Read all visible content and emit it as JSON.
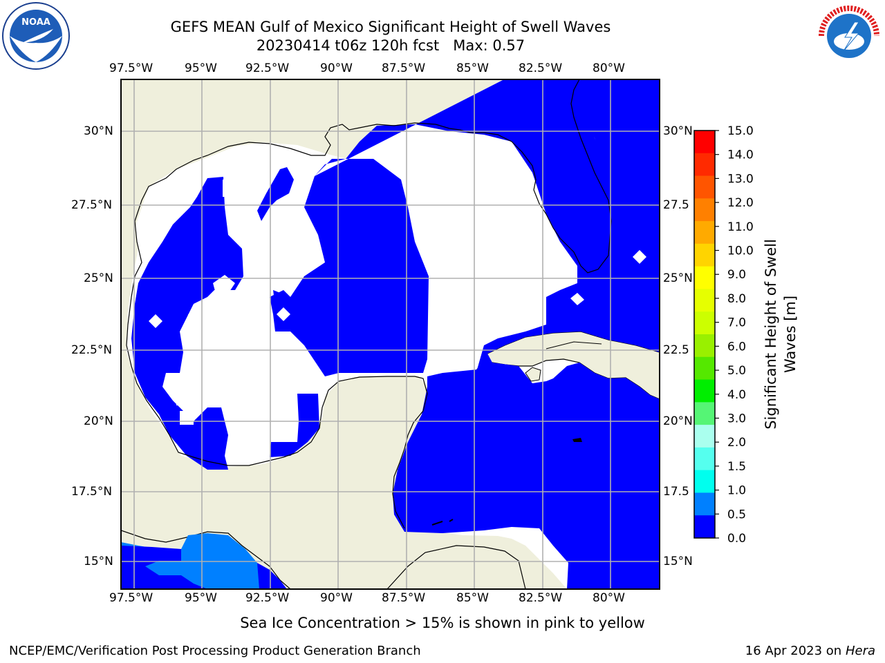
{
  "title_line1": "GEFS MEAN Gulf of Mexico Significant Height of Swell Waves",
  "title_line2": "20230414 t06z 120h fcst   Max: 0.57",
  "lon_ticks": [
    "97.5°W",
    "95°W",
    "92.5°W",
    "90°W",
    "87.5°W",
    "85°W",
    "82.5°W",
    "80°W"
  ],
  "lat_ticks": [
    "30°N",
    "27.5°N",
    "25°N",
    "22.5°N",
    "20°N",
    "17.5°N",
    "15°N"
  ],
  "lat_ticks_right": [
    "30°N",
    "27.5",
    "25°N",
    "22.5",
    "20°N",
    "17.5",
    "15°N"
  ],
  "colorbar": {
    "label_line1": "Significant Height of Swell",
    "label_line2": "Waves [m]",
    "ticks": [
      "15.0",
      "14.0",
      "13.0",
      "12.0",
      "11.0",
      "10.0",
      "9.0",
      "8.0",
      "7.0",
      "6.0",
      "5.0",
      "4.0",
      "3.0",
      "2.0",
      "1.5",
      "1.0",
      "0.5",
      "0.0"
    ],
    "colors": [
      "#ff0000",
      "#ff2a00",
      "#ff5500",
      "#ff8000",
      "#ffaa00",
      "#ffd400",
      "#ffff00",
      "#e6ff00",
      "#ccff00",
      "#99f000",
      "#55e800",
      "#00ee00",
      "#55f575",
      "#aaffee",
      "#55ffee",
      "#00ffee",
      "#0080ff",
      "#0000ff"
    ]
  },
  "colors": {
    "land": "#efefdc",
    "swell_low": "#0000ff",
    "swell_mid": "#0080ff",
    "calm": "#ffffff",
    "grid": "#b0b0b0"
  },
  "bottom_note": "Sea Ice Concentration > 15% is shown in pink to yellow",
  "footer_left": "NCEP/EMC/Verification Post Processing Product Generation Branch",
  "footer_right_prefix": "16 Apr 2023 on ",
  "footer_right_italic": "Hera",
  "logos": {
    "left": "noaa-logo",
    "left_text": "NOAA",
    "right": "nws-logo",
    "right_text": "NATIONAL WEATHER SERVICE"
  }
}
